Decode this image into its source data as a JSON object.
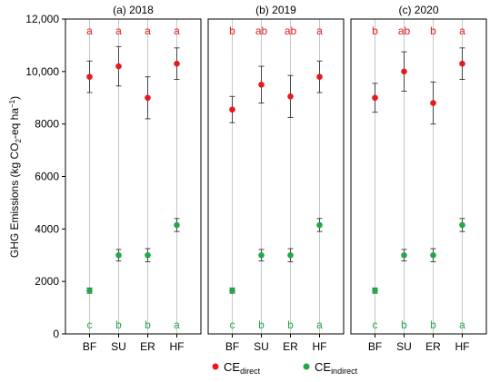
{
  "chart_data": {
    "type": "scatter",
    "ylabel_main": "GHG Emissions (kg CO",
    "ylabel_sub": "2",
    "ylabel_mid": "-eq ha",
    "ylabel_sup": "−1",
    "ylabel_end": ")",
    "ylim": [
      0,
      12000
    ],
    "yticks": [
      0,
      2000,
      4000,
      6000,
      8000,
      "10,000",
      "12,000"
    ],
    "ytick_values": [
      0,
      2000,
      4000,
      6000,
      8000,
      10000,
      12000
    ],
    "categories": [
      "BF",
      "SU",
      "ER",
      "HF"
    ],
    "grid": "vertical at each category",
    "legend_placement": "bottom-center",
    "colors": {
      "direct": "#e8191d",
      "indirect": "#22a84a",
      "error": "#444444",
      "grid": "#c8c8c8"
    },
    "legend": [
      {
        "key": "direct",
        "label": "CE",
        "sub": "direct"
      },
      {
        "key": "indirect",
        "label": "CE",
        "sub": "indirect"
      }
    ],
    "panels": [
      {
        "title": "(a) 2018",
        "series": [
          {
            "key": "direct",
            "values": [
              9800,
              10200,
              9000,
              10300
            ],
            "errors": [
              600,
              750,
              800,
              600
            ],
            "letters": [
              "a",
              "a",
              "a",
              "a"
            ]
          },
          {
            "key": "indirect",
            "values": [
              1650,
              3000,
              3000,
              4150
            ],
            "errors": [
              100,
              220,
              250,
              250
            ],
            "letters": [
              "c",
              "b",
              "b",
              "a"
            ]
          }
        ]
      },
      {
        "title": "(b) 2019",
        "series": [
          {
            "key": "direct",
            "values": [
              8550,
              9500,
              9050,
              9800
            ],
            "errors": [
              500,
              700,
              800,
              600
            ],
            "letters": [
              "b",
              "ab",
              "ab",
              "a"
            ]
          },
          {
            "key": "indirect",
            "values": [
              1650,
              3000,
              3000,
              4150
            ],
            "errors": [
              100,
              220,
              250,
              250
            ],
            "letters": [
              "c",
              "b",
              "b",
              "a"
            ]
          }
        ]
      },
      {
        "title": "(c) 2020",
        "series": [
          {
            "key": "direct",
            "values": [
              9000,
              10000,
              8800,
              10300
            ],
            "errors": [
              550,
              750,
              800,
              600
            ],
            "letters": [
              "b",
              "ab",
              "b",
              "a"
            ]
          },
          {
            "key": "indirect",
            "values": [
              1650,
              3000,
              3000,
              4150
            ],
            "errors": [
              100,
              220,
              250,
              250
            ],
            "letters": [
              "c",
              "b",
              "b",
              "a"
            ]
          }
        ]
      }
    ]
  }
}
